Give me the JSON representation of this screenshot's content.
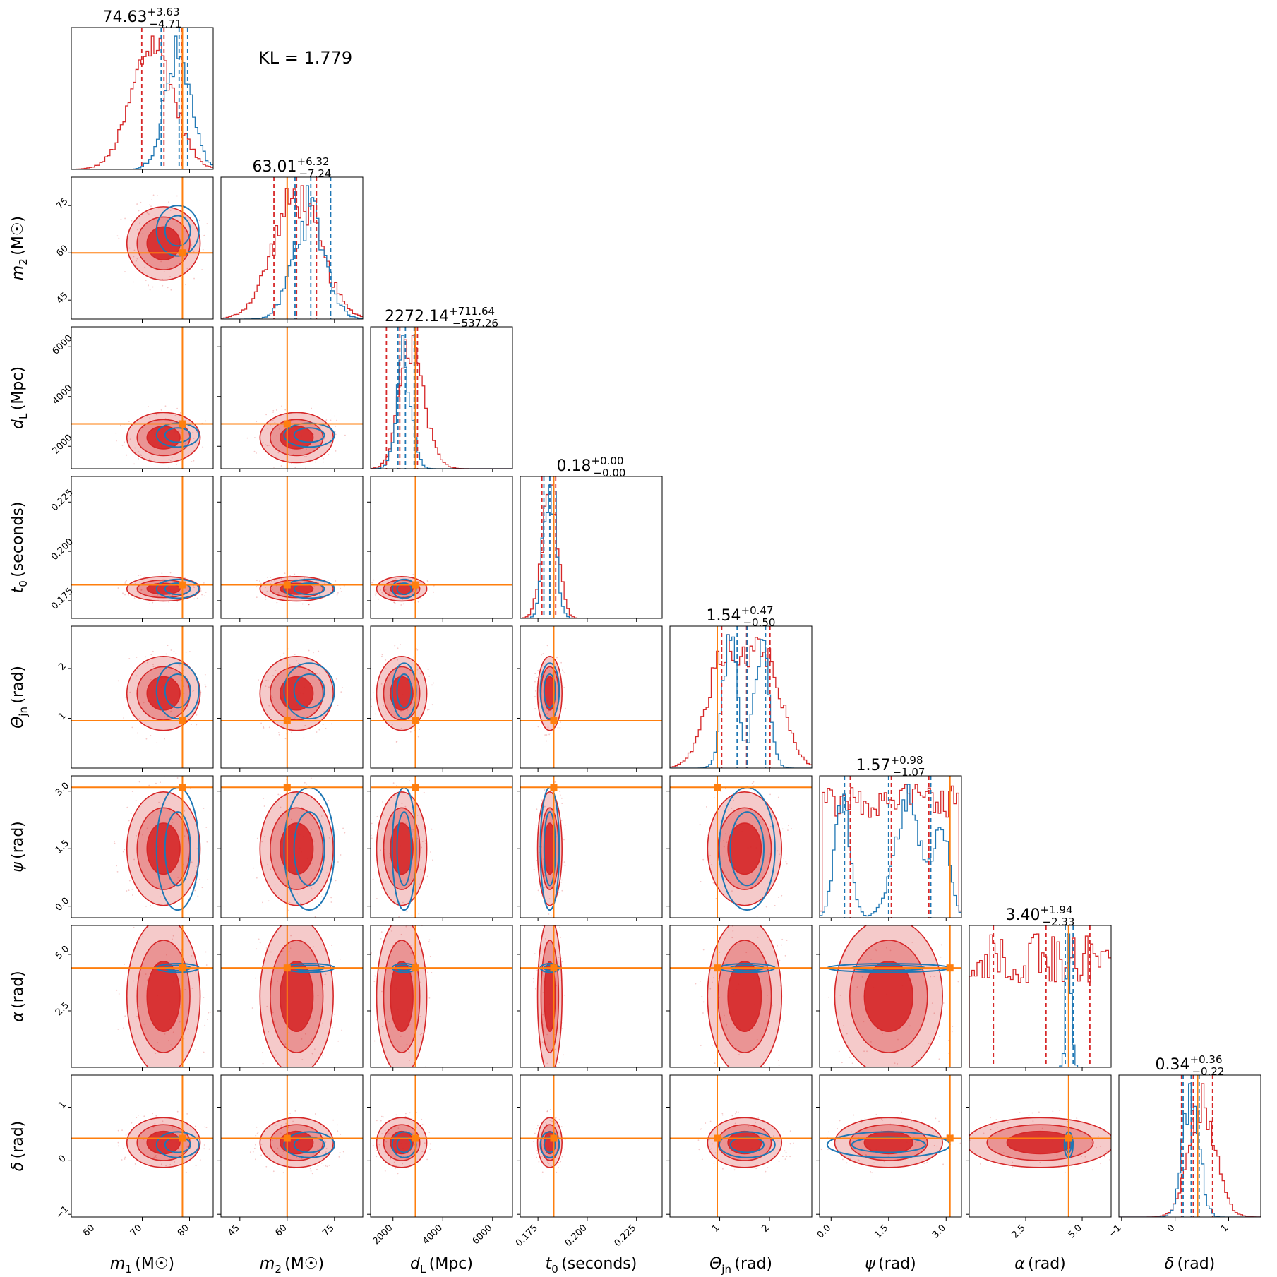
{
  "chart_data": {
    "type": "corner",
    "kl_label": "KL = 1.779",
    "legend": "none",
    "grid": false,
    "colors": {
      "posterior_a": "#d62728",
      "posterior_b": "#1f77b4",
      "truth": "#ff7f0e"
    },
    "parameters": [
      {
        "id": "m1",
        "symbol": "m",
        "sub": "1",
        "unit": "(M☉)",
        "range": [
          55,
          85
        ],
        "ticks": [
          "60",
          "70",
          "80"
        ],
        "tick_values": [
          60,
          70,
          80
        ],
        "truth": 78.5,
        "median": "74.63",
        "plus": "+3.63",
        "minus": "−4.71"
      },
      {
        "id": "m2",
        "symbol": "m",
        "sub": "2",
        "unit": "(M☉)",
        "range": [
          39,
          84
        ],
        "ticks": [
          "45",
          "60",
          "75"
        ],
        "tick_values": [
          45,
          60,
          75
        ],
        "truth": 60,
        "median": "63.01",
        "plus": "+6.32",
        "minus": "−7.24"
      },
      {
        "id": "dL",
        "symbol": "d",
        "sub": "L",
        "unit": "(Mpc)",
        "range": [
          1100,
          6800
        ],
        "ticks": [
          "2000",
          "4000",
          "6000"
        ],
        "tick_values": [
          2000,
          4000,
          6000
        ],
        "truth": 2900,
        "median": "2272.14",
        "plus": "+711.64",
        "minus": "−537.26"
      },
      {
        "id": "t0",
        "symbol": "t",
        "sub": "0",
        "unit": "(seconds)",
        "range": [
          0.166,
          0.238
        ],
        "ticks": [
          "0.175",
          "0.200",
          "0.225"
        ],
        "tick_values": [
          0.175,
          0.2,
          0.225
        ],
        "truth": 0.183,
        "median": "0.18",
        "plus": "+0.00",
        "minus": "−0.00"
      },
      {
        "id": "theta",
        "symbol": "Θ",
        "sub": "jn",
        "unit": "(rad)",
        "range": [
          0,
          2.85
        ],
        "ticks": [
          "1",
          "2"
        ],
        "tick_values": [
          1,
          2
        ],
        "truth": 0.95,
        "median": "1.54",
        "plus": "+0.47",
        "minus": "−0.50"
      },
      {
        "id": "psi",
        "symbol": "ψ",
        "sub": "",
        "unit": "(rad)",
        "range": [
          -0.3,
          3.4
        ],
        "ticks": [
          "0.0",
          "1.5",
          "3.0"
        ],
        "tick_values": [
          0,
          1.5,
          3
        ],
        "truth": 3.1,
        "median": "1.57",
        "plus": "+0.98",
        "minus": "−1.07"
      },
      {
        "id": "alpha",
        "symbol": "α",
        "sub": "",
        "unit": "(rad)",
        "range": [
          0,
          6.28
        ],
        "ticks": [
          "2.5",
          "5.0"
        ],
        "tick_values": [
          2.5,
          5
        ],
        "truth": 4.4,
        "median": "3.40",
        "plus": "+1.94",
        "minus": "−2.33"
      },
      {
        "id": "delta",
        "symbol": "δ",
        "sub": "",
        "unit": "(rad)",
        "range": [
          -1.05,
          1.6
        ],
        "ticks": [
          "−1",
          "0",
          "1"
        ],
        "tick_values": [
          -1,
          0,
          1
        ],
        "truth": 0.42,
        "median": "0.34",
        "plus": "+0.36",
        "minus": "−0.22"
      }
    ],
    "red_posterior": {
      "m1": {
        "mean": 74.5,
        "sd": 5.0,
        "skew": -0.6
      },
      "m2": {
        "mean": 63,
        "sd": 7.5,
        "skew": 0
      },
      "dL": {
        "mean": 2350,
        "sd": 650,
        "skew": 1.2
      },
      "t0": {
        "mean": 0.181,
        "sd": 0.004,
        "skew": 0
      },
      "theta": {
        "mean": 1.5,
        "sd": 0.48,
        "skew": 0
      },
      "psi": {
        "mean": 1.55,
        "sd": 1.0,
        "skew": 0
      },
      "alpha": {
        "mean": 3.4,
        "sd": 2.1,
        "skew": 0
      },
      "delta": {
        "mean": 0.34,
        "sd": 0.3,
        "skew": 0.8
      }
    },
    "blue_posterior": {
      "m1": {
        "mean": 77.5,
        "sd": 2.8
      },
      "m2": {
        "mean": 67,
        "sd": 5.0
      },
      "dL": {
        "mean": 2450,
        "sd": 300
      },
      "t0": {
        "mean": 0.181,
        "sd": 0.003
      },
      "theta": {
        "mean": 1.55,
        "sd": 0.35
      },
      "psi": {
        "mean": 1.5,
        "sd": 1.0
      },
      "alpha": {
        "mean": 4.4,
        "sd": 0.12
      },
      "delta": {
        "mean": 0.3,
        "sd": 0.15
      }
    },
    "dashed_quantiles_red": {
      "m1": [
        69.9,
        74.6,
        78.3
      ],
      "m2": [
        55.8,
        63.0,
        69.3
      ],
      "dL": [
        1735,
        2272,
        2984
      ],
      "t0": [
        0.177,
        0.181,
        0.184
      ],
      "theta": [
        1.04,
        1.54,
        2.01
      ],
      "psi": [
        0.5,
        1.57,
        2.55
      ],
      "alpha": [
        1.07,
        3.4,
        5.34
      ],
      "delta": [
        0.12,
        0.34,
        0.7
      ]
    },
    "dashed_quantiles_blue": {
      "m1": [
        74.0,
        77.8,
        79.6
      ],
      "m2": [
        62.5,
        67.5,
        73.8
      ],
      "dL": [
        2200,
        2500,
        2850
      ],
      "t0": [
        0.178,
        0.181,
        0.183
      ],
      "theta": [
        1.35,
        1.55,
        1.92
      ],
      "psi": [
        0.35,
        1.5,
        2.6
      ],
      "alpha": [
        4.25,
        4.4,
        4.6
      ],
      "delta": [
        0.15,
        0.3,
        0.45
      ]
    }
  }
}
